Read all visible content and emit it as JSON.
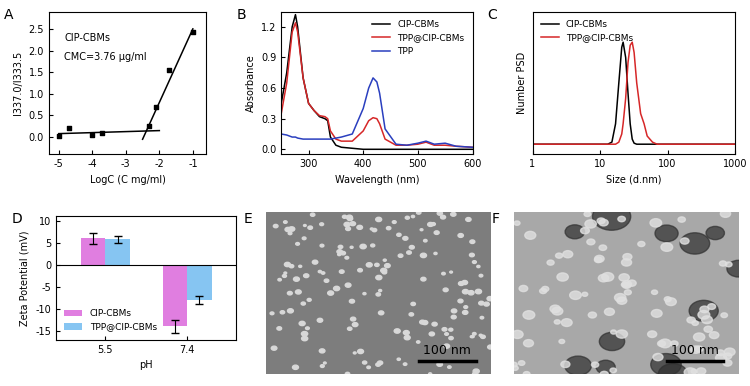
{
  "chart_data": [
    {
      "type": "scatter",
      "title": "A",
      "x_label": "LogC (C mg/ml)",
      "y_label": "I337.0/I333.5",
      "annotations": [
        "CIP-CBMs",
        "CMC=3.76 μg/ml"
      ],
      "xlim": [
        -5.3,
        -0.6
      ],
      "xticks": [
        -5,
        -4,
        -3,
        -2,
        -1
      ],
      "ylim": [
        -0.4,
        2.9
      ],
      "yticks": [
        {
          "value": 0,
          "label": "0.0"
        },
        {
          "value": 0.5,
          "label": "0.5"
        },
        {
          "value": 1.0,
          "label": "1.0"
        },
        {
          "value": 1.5,
          "label": "1.5"
        },
        {
          "value": 2.0,
          "label": "2.0"
        },
        {
          "value": 2.5,
          "label": "2.5"
        }
      ],
      "series": [
        {
          "type": "scatter",
          "marker": "square",
          "color": "#000000",
          "x": [
            -5.0,
            -4.7,
            -4.0,
            -3.7,
            -2.3,
            -2.1,
            -1.7,
            -1.0
          ],
          "values": [
            0.02,
            0.2,
            0.05,
            0.1,
            0.25,
            0.7,
            1.55,
            2.42
          ]
        },
        {
          "type": "line",
          "color": "#000000",
          "x": [
            -5.0,
            -2.0
          ],
          "values": [
            0.08,
            0.15
          ]
        },
        {
          "type": "line",
          "color": "#000000",
          "x": [
            -2.5,
            -1.0
          ],
          "values": [
            -0.05,
            2.5
          ]
        }
      ]
    },
    {
      "type": "line",
      "title": "B",
      "x_label": "Wavelength (nm)",
      "y_label": "Absorbance",
      "legend": "upper right",
      "x": [
        250,
        260,
        270,
        276,
        280,
        290,
        300,
        310,
        320,
        330,
        335,
        340,
        350,
        360,
        380,
        400,
        410,
        418,
        425,
        430,
        440,
        460,
        480,
        500,
        515,
        530,
        550,
        570,
        600
      ],
      "xlim": [
        250,
        600
      ],
      "xticks": [
        300,
        400,
        500,
        600
      ],
      "ylim": [
        -0.05,
        1.35
      ],
      "yticks": [
        {
          "value": 0,
          "label": "0.0"
        },
        {
          "value": 0.3,
          "label": "0.3"
        },
        {
          "value": 0.6,
          "label": "0.6"
        },
        {
          "value": 0.9,
          "label": "0.9"
        },
        {
          "value": 1.2,
          "label": "1.2"
        }
      ],
      "series": [
        {
          "name": "CIP-CBMs",
          "color": "#000000",
          "values": [
            0.45,
            0.75,
            1.2,
            1.32,
            1.2,
            0.7,
            0.45,
            0.38,
            0.32,
            0.3,
            0.28,
            0.12,
            0.04,
            0.02,
            0.01,
            0.0,
            0.0,
            0.0,
            0.0,
            0.0,
            0.0,
            0.0,
            0.0,
            0.0,
            0.0,
            0.0,
            0.0,
            0.0,
            0.0
          ]
        },
        {
          "name": "TPP@CIP-CBMs",
          "color": "#d62728",
          "values": [
            0.35,
            0.65,
            1.15,
            1.24,
            1.15,
            0.7,
            0.45,
            0.38,
            0.33,
            0.32,
            0.3,
            0.18,
            0.1,
            0.08,
            0.08,
            0.18,
            0.28,
            0.31,
            0.3,
            0.25,
            0.1,
            0.04,
            0.04,
            0.05,
            0.07,
            0.04,
            0.04,
            0.03,
            0.02
          ]
        },
        {
          "name": "TPP",
          "color": "#2a3fbf",
          "values": [
            0.15,
            0.14,
            0.12,
            0.12,
            0.11,
            0.1,
            0.1,
            0.1,
            0.1,
            0.1,
            0.1,
            0.1,
            0.11,
            0.12,
            0.15,
            0.4,
            0.6,
            0.7,
            0.66,
            0.55,
            0.2,
            0.05,
            0.04,
            0.06,
            0.08,
            0.05,
            0.06,
            0.03,
            0.02
          ]
        }
      ]
    },
    {
      "type": "line",
      "title": "C",
      "log": "x",
      "tick_labels": "x",
      "x_label": "Size (d.nm)",
      "y_label": "Number PSD",
      "legend": "upper left",
      "x": [
        1,
        10,
        13,
        15,
        17,
        19,
        21,
        22,
        24,
        26,
        28,
        30,
        32,
        35,
        40,
        45,
        50,
        60,
        70,
        100,
        1000
      ],
      "xlim": [
        1,
        1000
      ],
      "xticks": [
        1,
        10,
        100,
        1000
      ],
      "ylim": [
        -0.1,
        1.3
      ],
      "series": [
        {
          "name": "CIP-CBMs",
          "color": "#000000",
          "values": [
            0,
            0,
            0,
            0.02,
            0.2,
            0.6,
            0.95,
            1.0,
            0.85,
            0.5,
            0.2,
            0.05,
            0.01,
            0,
            0,
            0,
            0,
            0,
            0,
            0,
            0
          ]
        },
        {
          "name": "TPP@CIP-CBMs",
          "color": "#d62728",
          "values": [
            0,
            0,
            0,
            0,
            0,
            0.02,
            0.1,
            0.2,
            0.45,
            0.8,
            0.97,
            1.0,
            0.9,
            0.6,
            0.3,
            0.2,
            0.08,
            0.02,
            0,
            0,
            0
          ]
        }
      ]
    },
    {
      "type": "bar",
      "title": "D",
      "x_label": "pH",
      "y_label": "Zeta Potential (mV)",
      "legend": "lower left",
      "categories": [
        "5.5",
        "7.4"
      ],
      "ylim": [
        -17,
        11
      ],
      "yticks": [
        -15,
        -10,
        -5,
        0,
        5,
        10
      ],
      "series": [
        {
          "name": "CIP-CBMs",
          "color": "#e07ee0",
          "values": [
            6.0,
            -14.0
          ],
          "errors": [
            1.2,
            1.5
          ]
        },
        {
          "name": "TPP@CIP-CBMs",
          "color": "#86c5f2",
          "values": [
            5.8,
            -8.0
          ],
          "errors": [
            0.8,
            1.0
          ]
        }
      ]
    },
    {
      "type": "image",
      "title": "E",
      "annotations": [
        "100 nm"
      ]
    },
    {
      "type": "image",
      "title": "F",
      "annotations": [
        "100 nm"
      ]
    }
  ]
}
